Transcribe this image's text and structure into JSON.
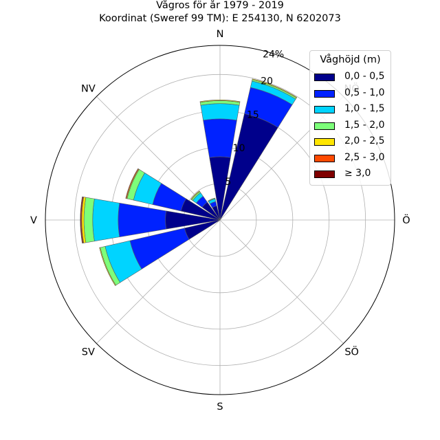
{
  "title": "Vågros för år 1979 - 2019",
  "subtitle": "Koordinat (Sweref 99 TM): E 254130, N 6202073",
  "compass": [
    "N",
    "NÖ",
    "Ö",
    "SÖ",
    "S",
    "SV",
    "V",
    "NV"
  ],
  "legend": {
    "title": "Våghöjd (m)",
    "items": [
      {
        "label": "0,0 - 0,5",
        "color": "#00008b"
      },
      {
        "label": "0,5 - 1,0",
        "color": "#0022ff"
      },
      {
        "label": "1,0 - 1,5",
        "color": "#00d4ff"
      },
      {
        "label": "1,5 - 2,0",
        "color": "#7dff7a"
      },
      {
        "label": "2,0 - 2,5",
        "color": "#ffe600"
      },
      {
        "label": "2,5 - 3,0",
        "color": "#ff4a00"
      },
      {
        "label": "≥ 3,0",
        "color": "#800000"
      }
    ]
  },
  "chart_data": {
    "type": "windrose",
    "title": "Vågros för år 1979 - 2019",
    "subtitle": "Koordinat (Sweref 99 TM): E 254130, N 6202073",
    "unit": "%",
    "rmax": 24,
    "radial_ticks": [
      "5",
      "10",
      "15",
      "20",
      "24%"
    ],
    "direction_labels": [
      "N",
      "NÖ",
      "Ö",
      "SÖ",
      "S",
      "SV",
      "V",
      "NV"
    ],
    "sector_width_deg": 22.5,
    "series_names": [
      "0,0 - 0,5",
      "0,5 - 1,0",
      "1,0 - 1,5",
      "1,5 - 2,0",
      "2,0 - 2,5",
      "2,5 - 3,0",
      "≥ 3,0"
    ],
    "colors": [
      "#00008b",
      "#0022ff",
      "#00d4ff",
      "#7dff7a",
      "#ffe600",
      "#ff4a00",
      "#800000"
    ],
    "sectors": [
      {
        "direction_deg": 0,
        "values": [
          8.7,
          5.2,
          2.1,
          0.4,
          0.1,
          0.0,
          0.0
        ]
      },
      {
        "direction_deg": 22.5,
        "values": [
          15.0,
          3.7,
          0.9,
          0.2,
          0.1,
          0.0,
          0.0
        ]
      },
      {
        "direction_deg": 337.5,
        "values": [
          2.0,
          0.6,
          0.4,
          0.1,
          0.0,
          0.0,
          0.0
        ]
      },
      {
        "direction_deg": 315,
        "values": [
          3.0,
          1.0,
          0.6,
          0.2,
          0.1,
          0.0,
          0.0
        ]
      },
      {
        "direction_deg": 292.5,
        "values": [
          5.5,
          4.0,
          2.7,
          0.9,
          0.1,
          0.1,
          0.0
        ]
      },
      {
        "direction_deg": 270,
        "values": [
          7.5,
          6.5,
          3.5,
          1.2,
          0.3,
          0.1,
          0.1
        ]
      },
      {
        "direction_deg": 247.5,
        "values": [
          5.0,
          7.7,
          3.5,
          0.7,
          0.1,
          0.0,
          0.0
        ]
      },
      {
        "direction_deg": 225,
        "values": [
          0.0,
          0.0,
          0.0,
          0.0,
          0.0,
          0.0,
          0.0
        ]
      }
    ]
  }
}
